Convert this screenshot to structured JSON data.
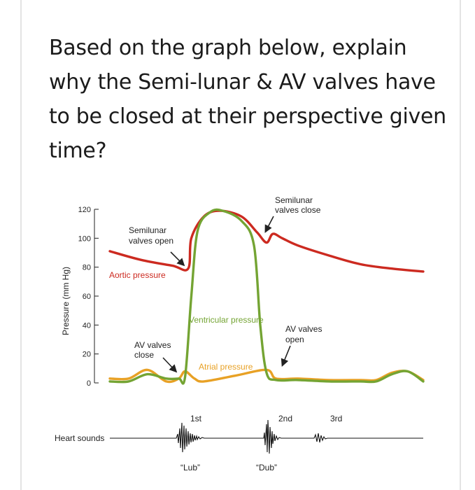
{
  "question": "Based on the graph below, explain why the Semi-lunar & AV valves have to be closed at their perspective given time?",
  "chart_data": {
    "type": "line",
    "ylabel": "Pressure (mm Hg)",
    "ylim": [
      0,
      120
    ],
    "yticks": [
      0,
      20,
      40,
      60,
      80,
      100,
      120
    ],
    "colors": {
      "aortic": "#cc2a20",
      "ventricular": "#74a433",
      "atrial": "#e8a125",
      "annotation": "#222222"
    },
    "series": [
      {
        "name": "Aortic pressure",
        "x": [
          0.0,
          0.1,
          0.2,
          0.25,
          0.26,
          0.3,
          0.35,
          0.42,
          0.47,
          0.5,
          0.52,
          0.55,
          0.6,
          0.7,
          0.8,
          0.9,
          1.0
        ],
        "values": [
          91,
          85,
          81,
          79,
          100,
          115,
          119,
          115,
          104,
          97,
          103,
          100,
          95,
          88,
          82,
          79,
          77
        ]
      },
      {
        "name": "Ventricular pressure",
        "x": [
          0.0,
          0.06,
          0.12,
          0.18,
          0.22,
          0.24,
          0.26,
          0.28,
          0.32,
          0.36,
          0.42,
          0.46,
          0.48,
          0.5,
          0.53,
          0.6,
          0.7,
          0.8,
          0.85,
          0.9,
          0.95,
          1.0
        ],
        "values": [
          1,
          1,
          6,
          3,
          3,
          4,
          60,
          105,
          118,
          119,
          112,
          95,
          40,
          7,
          2,
          2,
          1,
          1,
          1,
          6,
          8,
          1
        ]
      },
      {
        "name": "Atrial pressure",
        "x": [
          0.0,
          0.06,
          0.12,
          0.18,
          0.22,
          0.24,
          0.27,
          0.3,
          0.4,
          0.5,
          0.53,
          0.6,
          0.7,
          0.8,
          0.85,
          0.9,
          0.95,
          1.0
        ],
        "values": [
          3,
          3,
          9,
          1,
          3,
          8,
          3,
          1,
          5,
          9,
          3,
          3,
          2,
          2,
          2,
          7,
          8,
          2
        ]
      }
    ],
    "annotations": [
      {
        "id": "semilunar-open",
        "lines": [
          "Semilunar",
          "valves open"
        ],
        "x": 0.25,
        "y": 79
      },
      {
        "id": "semilunar-close",
        "lines": [
          "Semilunar",
          "valves close"
        ],
        "x": 0.5,
        "y": 97
      },
      {
        "id": "av-close",
        "lines": [
          "AV valves",
          "close"
        ],
        "x": 0.22,
        "y": 3
      },
      {
        "id": "av-open",
        "lines": [
          "AV valves",
          "open"
        ],
        "x": 0.53,
        "y": 7
      }
    ],
    "series_labels": [
      "Aortic pressure",
      "Ventricular pressure",
      "Atrial pressure"
    ],
    "heart_sounds": {
      "label": "Heart sounds",
      "sounds": [
        {
          "name": "1st",
          "nickname": "“Lub”"
        },
        {
          "name": "2nd",
          "nickname": "“Dub”"
        },
        {
          "name": "3rd",
          "nickname": ""
        }
      ]
    }
  }
}
